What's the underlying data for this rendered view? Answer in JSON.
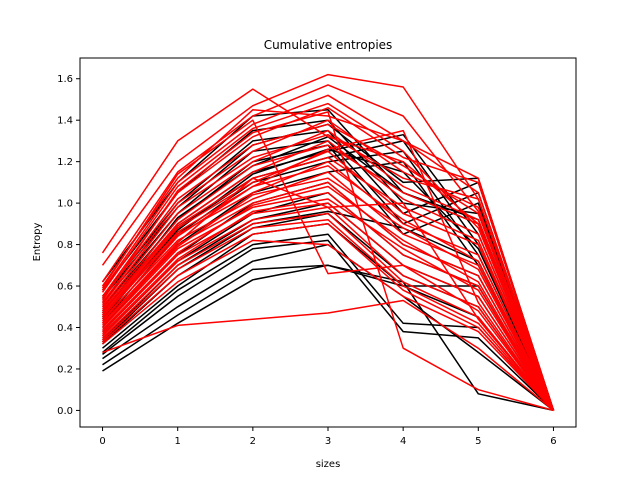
{
  "chart_data": {
    "type": "line",
    "title": "Cumulative entropies",
    "xlabel": "sizes",
    "ylabel": "Entropy",
    "xlim": [
      -0.3,
      6.3
    ],
    "ylim": [
      -0.08,
      1.7
    ],
    "xticks": [
      0,
      1,
      2,
      3,
      4,
      5,
      6
    ],
    "yticks": [
      0.0,
      0.2,
      0.4,
      0.6,
      0.8,
      1.0,
      1.2,
      1.4,
      1.6
    ],
    "grid": false,
    "x": [
      0,
      1,
      2,
      3,
      4,
      5,
      6
    ],
    "colors": {
      "red": "#ff0000",
      "black": "#000000"
    },
    "series": [
      {
        "color": "red",
        "values": [
          0.76,
          1.3,
          1.55,
          1.32,
          1.2,
          0.9,
          0.0
        ]
      },
      {
        "color": "red",
        "values": [
          0.7,
          1.2,
          1.47,
          1.62,
          1.56,
          1.02,
          0.0
        ]
      },
      {
        "color": "red",
        "values": [
          0.62,
          1.15,
          1.42,
          1.57,
          1.42,
          0.96,
          0.0
        ]
      },
      {
        "color": "red",
        "values": [
          0.58,
          1.1,
          1.38,
          1.52,
          1.3,
          1.05,
          0.0
        ]
      },
      {
        "color": "red",
        "values": [
          0.55,
          1.05,
          1.32,
          1.46,
          1.22,
          1.1,
          0.0
        ]
      },
      {
        "color": "red",
        "values": [
          0.52,
          1.0,
          1.25,
          1.4,
          1.15,
          0.98,
          0.0
        ]
      },
      {
        "color": "red",
        "values": [
          0.5,
          0.95,
          1.2,
          1.35,
          1.08,
          0.92,
          0.0
        ]
      },
      {
        "color": "red",
        "values": [
          0.48,
          0.9,
          1.15,
          1.3,
          1.02,
          0.85,
          0.0
        ]
      },
      {
        "color": "red",
        "values": [
          0.46,
          0.88,
          1.1,
          1.25,
          0.95,
          0.8,
          0.0
        ]
      },
      {
        "color": "red",
        "values": [
          0.45,
          0.85,
          1.05,
          1.2,
          0.9,
          0.75,
          0.0
        ]
      },
      {
        "color": "red",
        "values": [
          0.44,
          0.82,
          1.02,
          1.15,
          0.85,
          0.7,
          0.0
        ]
      },
      {
        "color": "red",
        "values": [
          0.42,
          0.8,
          1.0,
          1.1,
          0.8,
          0.65,
          0.0
        ]
      },
      {
        "color": "red",
        "values": [
          0.4,
          0.78,
          0.98,
          1.05,
          0.75,
          0.6,
          0.0
        ]
      },
      {
        "color": "red",
        "values": [
          0.38,
          0.75,
          0.95,
          1.0,
          0.7,
          0.55,
          0.0
        ]
      },
      {
        "color": "red",
        "values": [
          0.36,
          0.72,
          0.92,
          0.98,
          0.65,
          0.5,
          0.0
        ]
      },
      {
        "color": "red",
        "values": [
          0.35,
          0.7,
          0.9,
          0.95,
          0.62,
          0.45,
          0.0
        ]
      },
      {
        "color": "red",
        "values": [
          0.34,
          0.68,
          0.88,
          0.92,
          0.6,
          0.42,
          0.0
        ]
      },
      {
        "color": "red",
        "values": [
          0.33,
          0.65,
          0.85,
          0.9,
          0.58,
          0.4,
          0.0
        ]
      },
      {
        "color": "red",
        "values": [
          0.32,
          0.62,
          0.82,
          0.8,
          0.55,
          0.38,
          0.0
        ]
      },
      {
        "color": "red",
        "values": [
          0.28,
          0.41,
          0.44,
          0.47,
          0.53,
          0.3,
          0.0
        ]
      },
      {
        "color": "red",
        "values": [
          0.6,
          1.12,
          1.45,
          1.42,
          1.3,
          1.12,
          0.0
        ]
      },
      {
        "color": "red",
        "values": [
          0.57,
          1.08,
          1.36,
          1.48,
          1.25,
          0.88,
          0.0
        ]
      },
      {
        "color": "red",
        "values": [
          0.54,
          1.02,
          1.28,
          1.38,
          1.18,
          0.95,
          0.0
        ]
      },
      {
        "color": "red",
        "values": [
          0.51,
          0.98,
          1.22,
          1.33,
          1.12,
          1.02,
          0.0
        ]
      },
      {
        "color": "red",
        "values": [
          0.49,
          0.92,
          1.18,
          1.28,
          1.05,
          0.9,
          0.0
        ]
      },
      {
        "color": "red",
        "values": [
          0.47,
          0.89,
          1.12,
          1.22,
          0.98,
          0.82,
          0.0
        ]
      },
      {
        "color": "red",
        "values": [
          0.43,
          0.84,
          1.08,
          1.18,
          0.92,
          0.72,
          0.0
        ]
      },
      {
        "color": "red",
        "values": [
          0.41,
          0.79,
          1.04,
          1.12,
          0.88,
          0.68,
          0.0
        ]
      },
      {
        "color": "red",
        "values": [
          0.39,
          0.76,
          0.99,
          1.08,
          0.82,
          0.62,
          0.0
        ]
      },
      {
        "color": "red",
        "values": [
          0.37,
          0.73,
          0.96,
          1.02,
          0.78,
          0.58,
          0.0
        ]
      },
      {
        "color": "red",
        "values": [
          0.59,
          1.14,
          1.4,
          0.66,
          0.7,
          0.48,
          0.0
        ]
      },
      {
        "color": "red",
        "values": [
          0.53,
          1.06,
          1.34,
          1.44,
          0.3,
          0.1,
          0.0
        ]
      },
      {
        "color": "red",
        "values": [
          0.46,
          0.86,
          1.08,
          1.26,
          1.35,
          0.52,
          0.0
        ]
      },
      {
        "color": "red",
        "values": [
          0.42,
          0.81,
          1.12,
          0.98,
          1.0,
          0.44,
          0.0
        ]
      },
      {
        "color": "black",
        "values": [
          0.62,
          1.1,
          1.42,
          1.45,
          1.05,
          0.9,
          0.0
        ]
      },
      {
        "color": "black",
        "values": [
          0.58,
          1.05,
          1.35,
          1.4,
          1.0,
          0.95,
          0.0
        ]
      },
      {
        "color": "black",
        "values": [
          0.55,
          1.0,
          1.3,
          1.35,
          0.95,
          1.1,
          0.0
        ]
      },
      {
        "color": "black",
        "values": [
          0.52,
          0.95,
          1.25,
          1.3,
          0.9,
          1.05,
          0.0
        ]
      },
      {
        "color": "black",
        "values": [
          0.5,
          0.92,
          1.2,
          1.28,
          0.85,
          1.0,
          0.0
        ]
      },
      {
        "color": "black",
        "values": [
          0.48,
          0.9,
          1.15,
          1.25,
          1.33,
          0.85,
          0.0
        ]
      },
      {
        "color": "black",
        "values": [
          0.45,
          0.88,
          1.12,
          1.22,
          1.3,
          0.8,
          0.0
        ]
      },
      {
        "color": "black",
        "values": [
          0.42,
          0.85,
          1.1,
          1.2,
          1.25,
          0.75,
          0.0
        ]
      },
      {
        "color": "black",
        "values": [
          0.4,
          0.8,
          1.05,
          1.15,
          1.2,
          0.7,
          0.0
        ]
      },
      {
        "color": "black",
        "values": [
          0.38,
          0.75,
          1.0,
          1.1,
          0.8,
          0.65,
          0.0
        ]
      },
      {
        "color": "black",
        "values": [
          0.36,
          0.72,
          0.95,
          1.05,
          0.75,
          0.6,
          0.0
        ]
      },
      {
        "color": "black",
        "values": [
          0.34,
          0.7,
          0.92,
          1.0,
          0.7,
          0.55,
          0.0
        ]
      },
      {
        "color": "black",
        "values": [
          0.32,
          0.65,
          0.88,
          0.95,
          0.65,
          0.5,
          0.0
        ]
      },
      {
        "color": "black",
        "values": [
          0.3,
          0.6,
          0.85,
          0.9,
          0.6,
          0.45,
          0.0
        ]
      },
      {
        "color": "black",
        "values": [
          0.28,
          0.58,
          0.8,
          0.85,
          0.42,
          0.4,
          0.0
        ]
      },
      {
        "color": "black",
        "values": [
          0.27,
          0.55,
          0.78,
          0.82,
          0.38,
          0.35,
          0.0
        ]
      },
      {
        "color": "black",
        "values": [
          0.25,
          0.5,
          0.72,
          0.8,
          0.55,
          0.28,
          0.0
        ]
      },
      {
        "color": "black",
        "values": [
          0.22,
          0.46,
          0.68,
          0.7,
          0.62,
          0.08,
          0.0
        ]
      },
      {
        "color": "black",
        "values": [
          0.19,
          0.42,
          0.63,
          0.7,
          0.6,
          0.6,
          0.0
        ]
      },
      {
        "color": "black",
        "values": [
          0.54,
          0.98,
          1.28,
          1.38,
          1.1,
          1.12,
          0.0
        ]
      },
      {
        "color": "black",
        "values": [
          0.47,
          0.93,
          1.18,
          1.32,
          1.05,
          0.92,
          0.0
        ]
      },
      {
        "color": "black",
        "values": [
          0.44,
          0.87,
          1.14,
          1.26,
          1.15,
          0.78,
          0.0
        ]
      },
      {
        "color": "black",
        "values": [
          0.33,
          0.68,
          0.9,
          0.96,
          0.88,
          0.72,
          0.0
        ]
      }
    ]
  }
}
